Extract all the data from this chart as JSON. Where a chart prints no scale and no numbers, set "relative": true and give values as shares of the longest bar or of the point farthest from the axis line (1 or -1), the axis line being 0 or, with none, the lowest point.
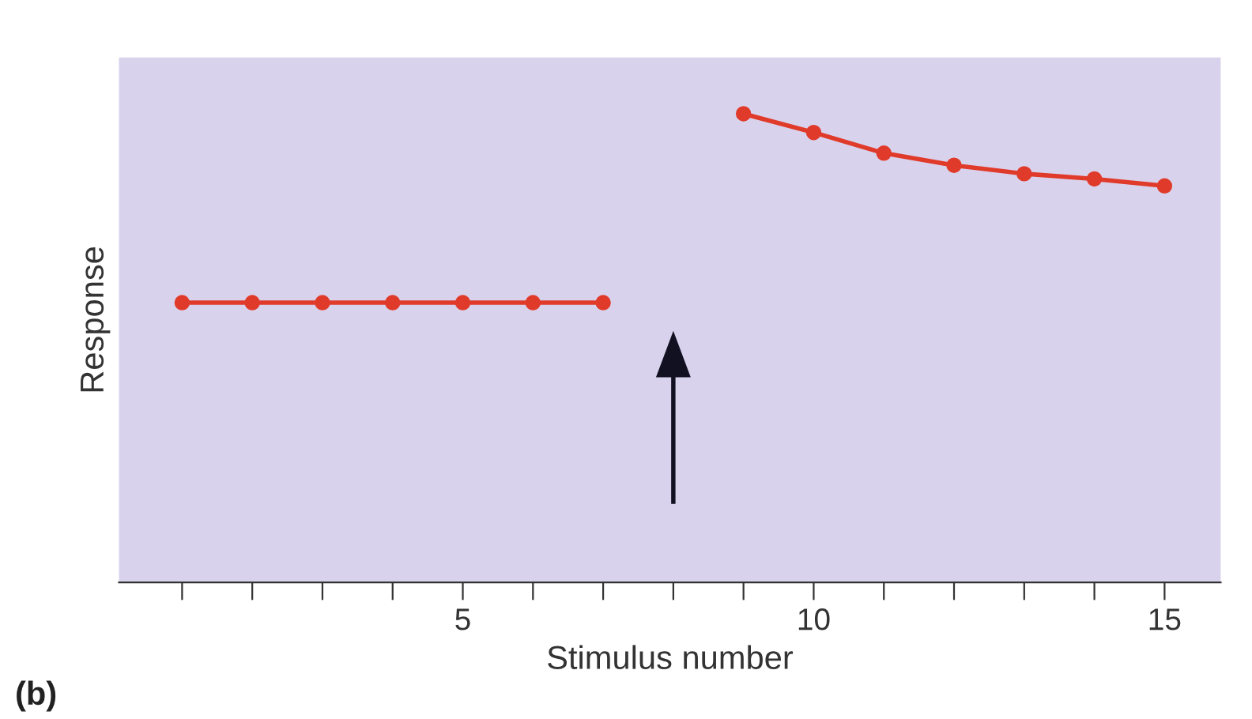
{
  "chart_data": {
    "type": "line",
    "relative": true,
    "xlabel": "Stimulus number",
    "ylabel": "Response",
    "annotations": [
      "(b)"
    ],
    "x": [
      1,
      2,
      3,
      4,
      5,
      6,
      7,
      8,
      9,
      10,
      11,
      12,
      13,
      14,
      15
    ],
    "series": [
      {
        "color": "#e03a2a",
        "values": [
          0.597,
          0.597,
          0.597,
          0.597,
          0.597,
          0.597,
          0.597,
          null,
          1,
          0.96,
          0.916,
          0.89,
          0.872,
          0.861,
          0.846
        ]
      }
    ],
    "xlim": [
      0.1,
      15.8
    ],
    "xticks": [
      {
        "value": 1,
        "label": null
      },
      {
        "value": 2,
        "label": null
      },
      {
        "value": 3,
        "label": null
      },
      {
        "value": 4,
        "label": null
      },
      5,
      {
        "value": 6,
        "label": null
      },
      {
        "value": 7,
        "label": null
      },
      {
        "value": 8,
        "label": null
      },
      {
        "value": 9,
        "label": null
      },
      10,
      {
        "value": 11,
        "label": null
      },
      {
        "value": 12,
        "label": null
      },
      {
        "value": 13,
        "label": null
      },
      {
        "value": 14,
        "label": null
      },
      15
    ],
    "tick_labels": "x",
    "marker": "circle",
    "line_style": "solid",
    "grid": false,
    "legend": false
  }
}
